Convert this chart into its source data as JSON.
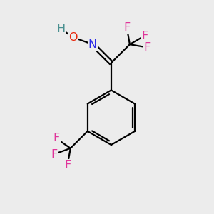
{
  "background_color": "#ececec",
  "bond_color": "#000000",
  "atom_colors": {
    "F": "#e0359a",
    "O": "#e8260a",
    "N": "#2b2be8",
    "H": "#4a9090",
    "C": "#000000"
  },
  "font_size": 11.5,
  "figsize": [
    3.0,
    3.0
  ],
  "dpi": 100
}
